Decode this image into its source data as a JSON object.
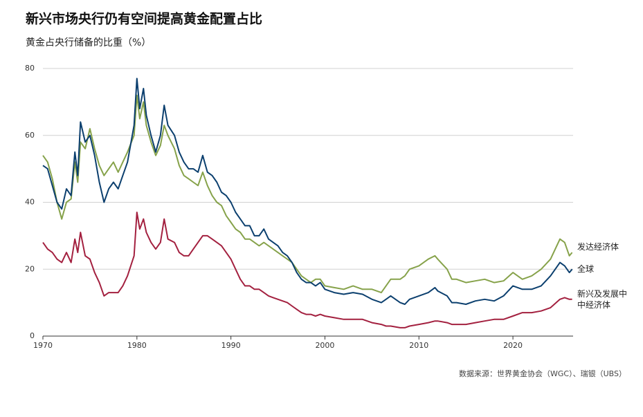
{
  "chart_data": {
    "type": "line",
    "title": "新兴市场央行仍有空间提高黄金配置占比",
    "subtitle": "黄金占央行储备的比重（%）",
    "source": "数据来源：世界黄金协会（WGC）、瑞银（UBS）",
    "x": [
      1970,
      1970.5,
      1971,
      1971.5,
      1972,
      1972.5,
      1973,
      1973.4,
      1973.7,
      1974,
      1974.5,
      1975,
      1975.5,
      1976,
      1976.5,
      1977,
      1977.5,
      1978,
      1978.5,
      1979,
      1979.7,
      1980,
      1980.3,
      1980.7,
      1981,
      1981.5,
      1982,
      1982.5,
      1982.9,
      1983.3,
      1984,
      1984.5,
      1985,
      1985.5,
      1986,
      1986.5,
      1987,
      1987.5,
      1988,
      1988.5,
      1989,
      1989.5,
      1990,
      1990.5,
      1991,
      1991.5,
      1992,
      1992.5,
      1993,
      1993.5,
      1994,
      1994.5,
      1995,
      1995.5,
      1996,
      1996.5,
      1997,
      1997.5,
      1998,
      1998.5,
      1999,
      1999.5,
      2000,
      2001,
      2002,
      2003,
      2004,
      2005,
      2006,
      2006.5,
      2007,
      2008,
      2008.5,
      2009,
      2010,
      2011,
      2011.7,
      2012,
      2013,
      2013.5,
      2014,
      2015,
      2016,
      2017,
      2018,
      2019,
      2020,
      2021,
      2022,
      2023,
      2024,
      2025,
      2025.5,
      2026,
      2026.3
    ],
    "series": [
      {
        "name": "发达经济体",
        "color": "#86a24a",
        "values": [
          54,
          52,
          47,
          40,
          35,
          40,
          41,
          52,
          46,
          58,
          56,
          62,
          56,
          51,
          48,
          50,
          52,
          49,
          52,
          55,
          60,
          72,
          65,
          70,
          63,
          58,
          54,
          57,
          63,
          60,
          56,
          51,
          48,
          47,
          46,
          45,
          49,
          45,
          42,
          40,
          39,
          36,
          34,
          32,
          31,
          29,
          29,
          28,
          27,
          28,
          27,
          26,
          25,
          24,
          23,
          22,
          20,
          18,
          17,
          16,
          17,
          17,
          15,
          14.5,
          14,
          15,
          14,
          14,
          13,
          15,
          17,
          17,
          18,
          20,
          21,
          23,
          24,
          23,
          20,
          17,
          17,
          16,
          16.5,
          17,
          16,
          16.5,
          19,
          17,
          18,
          20,
          23,
          29,
          28,
          24,
          25
        ]
      },
      {
        "name": "全球",
        "color": "#0b3f6e",
        "values": [
          51,
          50,
          45,
          40,
          38,
          44,
          42,
          55,
          48,
          64,
          58,
          60,
          54,
          46,
          40,
          44,
          46,
          44,
          48,
          52,
          63,
          77,
          68,
          74,
          66,
          60,
          55,
          60,
          69,
          63,
          60,
          55,
          52,
          50,
          50,
          49,
          54,
          49,
          48,
          46,
          43,
          42,
          40,
          37,
          35,
          33,
          33,
          30,
          30,
          32,
          29,
          28,
          27,
          25,
          24,
          22,
          19,
          17,
          16,
          16,
          15,
          16,
          14,
          13,
          12.5,
          13,
          12.5,
          11,
          10,
          11,
          12,
          10,
          9.5,
          11,
          12,
          13,
          14.5,
          13.5,
          12,
          10,
          10,
          9.5,
          10.5,
          11,
          10.5,
          12,
          15,
          14,
          14,
          15,
          18,
          22,
          21,
          19,
          20
        ]
      },
      {
        "name": "新兴及发展中\n中经济体",
        "color": "#a3203f",
        "values": [
          28,
          26,
          25,
          23,
          22,
          25,
          22,
          29,
          25,
          31,
          24,
          23,
          19,
          16,
          12,
          13,
          13,
          13,
          15,
          18,
          24,
          37,
          32,
          35,
          31,
          28,
          26,
          28,
          35,
          29,
          28,
          25,
          24,
          24,
          26,
          28,
          30,
          30,
          29,
          28,
          27,
          25,
          23,
          20,
          17,
          15,
          15,
          14,
          14,
          13,
          12,
          11.5,
          11,
          10.5,
          10,
          9,
          8,
          7,
          6.5,
          6.5,
          6,
          6.5,
          6,
          5.5,
          5,
          5,
          5,
          4,
          3.5,
          3,
          3,
          2.5,
          2.5,
          3,
          3.5,
          4,
          4.5,
          4.5,
          4,
          3.5,
          3.5,
          3.5,
          4,
          4.5,
          5,
          5,
          6,
          7,
          7,
          7.5,
          8.5,
          11,
          11.5,
          11,
          11
        ]
      }
    ],
    "xlim": [
      1970,
      2026.4
    ],
    "xticks": [
      1970,
      1980,
      1990,
      2000,
      2010,
      2020
    ],
    "ylim": [
      0,
      80
    ],
    "yticks": [
      0,
      20,
      40,
      60,
      80
    ],
    "grid": true
  }
}
